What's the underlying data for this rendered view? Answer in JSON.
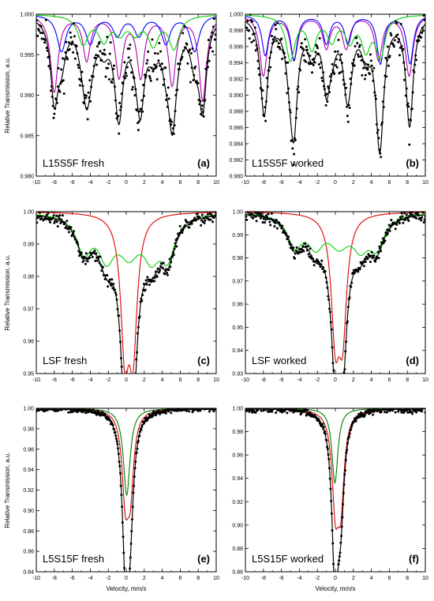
{
  "figure": {
    "xlabel": "Velocity, mm/s",
    "ylabel": "Relative Transmission, a.u."
  },
  "colors": {
    "data": "#000000",
    "fit": "#000000",
    "red": "#e00000",
    "green": "#00d000",
    "darkgreen": "#008000",
    "blue": "#0000ff",
    "magenta": "#b000b0"
  },
  "chart_data": [
    {
      "id": "a",
      "type": "scatter",
      "label": "L15S5F fresh",
      "letter": "(a)",
      "xlim": [
        -10,
        10
      ],
      "xticks": [
        -10,
        -8,
        -6,
        -4,
        -2,
        0,
        2,
        4,
        6,
        8,
        10
      ],
      "ylim": [
        0.98,
        1.0
      ],
      "yticks": [
        "1.000",
        "0.995",
        "0.990",
        "0.985",
        "0.980"
      ],
      "show_ylabel": true,
      "show_xlabel": false,
      "components": [
        {
          "name": "sextet-1",
          "color": "magenta",
          "baseline": 1.0,
          "lines": [
            [
              -8.0,
              0.0095,
              0.5
            ],
            [
              -4.4,
              0.0055,
              0.5
            ],
            [
              -0.8,
              0.0075,
              0.5
            ],
            [
              1.6,
              0.0075,
              0.5
            ],
            [
              5.1,
              0.0085,
              0.5
            ],
            [
              8.5,
              0.0105,
              0.5
            ]
          ]
        },
        {
          "name": "sextet-2",
          "color": "blue",
          "baseline": 1.0,
          "lines": [
            [
              -7.2,
              0.0045,
              0.6
            ],
            [
              -4.0,
              0.0035,
              0.6
            ],
            [
              -1.0,
              0.0025,
              0.6
            ],
            [
              1.4,
              0.0025,
              0.6
            ],
            [
              4.4,
              0.0035,
              0.6
            ],
            [
              7.6,
              0.0045,
              0.6
            ]
          ]
        },
        {
          "name": "sextet-3",
          "color": "green",
          "baseline": 1.0,
          "lines": [
            [
              -4.8,
              0.0035,
              0.7
            ],
            [
              -2.5,
              0.003,
              0.7
            ],
            [
              -0.7,
              0.002,
              0.7
            ],
            [
              1.0,
              0.002,
              0.7
            ],
            [
              3.0,
              0.0035,
              0.7
            ],
            [
              5.3,
              0.004,
              0.7
            ]
          ]
        }
      ],
      "noise": 0.0016,
      "noise_n": 260,
      "seed": 11
    },
    {
      "id": "b",
      "type": "scatter",
      "label": "L15S5F worked",
      "letter": "(b)",
      "xlim": [
        -10,
        10
      ],
      "xticks": [
        -10,
        -8,
        -6,
        -4,
        -2,
        0,
        2,
        4,
        6,
        8,
        10
      ],
      "ylim": [
        0.98,
        1.0
      ],
      "yticks": [
        "1.000",
        "0.998",
        "0.996",
        "0.994",
        "0.992",
        "0.990",
        "0.988",
        "0.986",
        "0.984",
        "0.982",
        "0.980"
      ],
      "show_ylabel": false,
      "show_xlabel": false,
      "components": [
        {
          "name": "sextet-1",
          "color": "magenta",
          "baseline": 1.0,
          "lines": [
            [
              -8.0,
              0.0075,
              0.5
            ],
            [
              -4.6,
              0.0055,
              0.5
            ],
            [
              -1.0,
              0.004,
              0.5
            ],
            [
              1.2,
              0.004,
              0.5
            ],
            [
              4.8,
              0.0055,
              0.5
            ],
            [
              8.2,
              0.0075,
              0.5
            ]
          ]
        },
        {
          "name": "sextet-2",
          "color": "blue",
          "baseline": 1.0,
          "lines": [
            [
              -7.8,
              0.005,
              0.45
            ],
            [
              -4.6,
              0.0055,
              0.45
            ],
            [
              -1.0,
              0.0035,
              0.45
            ],
            [
              1.4,
              0.0035,
              0.45
            ],
            [
              5.0,
              0.006,
              0.45
            ],
            [
              8.3,
              0.006,
              0.45
            ]
          ]
        },
        {
          "name": "sextet-3",
          "color": "green",
          "baseline": 1.0,
          "lines": [
            [
              -5.0,
              0.0055,
              0.6
            ],
            [
              -2.6,
              0.004,
              0.6
            ],
            [
              -0.4,
              0.003,
              0.6
            ],
            [
              1.6,
              0.003,
              0.6
            ],
            [
              3.4,
              0.004,
              0.6
            ],
            [
              5.0,
              0.005,
              0.6
            ]
          ]
        }
      ],
      "noise": 0.0013,
      "noise_n": 260,
      "seed": 23
    },
    {
      "id": "c",
      "type": "scatter",
      "label": "LSF fresh",
      "letter": "(c)",
      "xlim": [
        -10,
        10
      ],
      "xticks": [
        -10,
        -8,
        -6,
        -4,
        -2,
        0,
        2,
        4,
        6,
        8,
        10
      ],
      "ylim": [
        0.95,
        1.0
      ],
      "yticks": [
        "1.00",
        "0.99",
        "0.98",
        "0.97",
        "0.96",
        "0.95"
      ],
      "show_ylabel": true,
      "show_xlabel": false,
      "components": [
        {
          "name": "doublet",
          "color": "red",
          "baseline": 1.0,
          "lines": [
            [
              -0.15,
              0.04,
              0.55
            ],
            [
              0.75,
              0.039,
              0.55
            ]
          ]
        },
        {
          "name": "sextet",
          "color": "green",
          "baseline": 1.0,
          "lines": [
            [
              -4.7,
              0.011,
              1.0
            ],
            [
              -2.2,
              0.012,
              1.1
            ],
            [
              0.3,
              0.011,
              1.4
            ],
            [
              2.8,
              0.011,
              1.1
            ],
            [
              4.6,
              0.012,
              1.0
            ]
          ]
        }
      ],
      "noise": 0.0012,
      "noise_n": 260,
      "seed": 37
    },
    {
      "id": "d",
      "type": "scatter",
      "label": "LSF worked",
      "letter": "(d)",
      "xlim": [
        -10,
        10
      ],
      "xticks": [
        -10,
        -8,
        -6,
        -4,
        -2,
        0,
        2,
        4,
        6,
        8,
        10
      ],
      "ylim": [
        0.93,
        1.0
      ],
      "yticks": [
        "1.00",
        "0.99",
        "0.98",
        "0.97",
        "0.96",
        "0.95",
        "0.94",
        "0.93"
      ],
      "show_ylabel": false,
      "show_xlabel": false,
      "components": [
        {
          "name": "doublet",
          "color": "red",
          "baseline": 1.0,
          "lines": [
            [
              0.0,
              0.049,
              0.55
            ],
            [
              0.8,
              0.047,
              0.55
            ]
          ]
        },
        {
          "name": "sextet",
          "color": "green",
          "baseline": 1.0,
          "lines": [
            [
              -4.5,
              0.013,
              1.0
            ],
            [
              -2.2,
              0.012,
              1.1
            ],
            [
              0.4,
              0.012,
              1.4
            ],
            [
              2.8,
              0.012,
              1.1
            ],
            [
              4.6,
              0.013,
              1.0
            ]
          ]
        }
      ],
      "noise": 0.0015,
      "noise_n": 260,
      "seed": 41
    },
    {
      "id": "e",
      "type": "scatter",
      "label": "L5S15F fresh",
      "letter": "(e)",
      "xlim": [
        -10,
        10
      ],
      "xticks": [
        -10,
        -8,
        -6,
        -4,
        -2,
        0,
        2,
        4,
        6,
        8,
        10
      ],
      "ylim": [
        0.84,
        1.0
      ],
      "yticks": [
        "1.00",
        "0.98",
        "0.96",
        "0.94",
        "0.92",
        "0.90",
        "0.88",
        "0.86",
        "0.84"
      ],
      "show_ylabel": true,
      "show_xlabel": true,
      "components": [
        {
          "name": "doublet",
          "color": "red",
          "baseline": 1.0,
          "lines": [
            [
              -0.1,
              0.078,
              0.45
            ],
            [
              0.45,
              0.07,
              0.45
            ]
          ]
        },
        {
          "name": "singlet",
          "color": "darkgreen",
          "baseline": 1.0,
          "lines": [
            [
              0.05,
              0.085,
              0.45
            ]
          ]
        }
      ],
      "noise": 0.0015,
      "noise_n": 320,
      "seed": 53
    },
    {
      "id": "f",
      "type": "scatter",
      "label": "L5S15F worked",
      "letter": "(f)",
      "xlim": [
        -10,
        10
      ],
      "xticks": [
        -10,
        -8,
        -6,
        -4,
        -2,
        0,
        2,
        4,
        6,
        8,
        10
      ],
      "ylim": [
        0.86,
        1.0
      ],
      "yticks": [
        "1.00",
        "0.98",
        "0.96",
        "0.94",
        "0.92",
        "0.90",
        "0.88",
        "0.86"
      ],
      "show_ylabel": false,
      "show_xlabel": true,
      "components": [
        {
          "name": "doublet",
          "color": "red",
          "baseline": 1.0,
          "lines": [
            [
              0.0,
              0.075,
              0.45
            ],
            [
              0.6,
              0.072,
              0.45
            ]
          ]
        },
        {
          "name": "singlet",
          "color": "darkgreen",
          "baseline": 1.0,
          "lines": [
            [
              -0.05,
              0.064,
              0.4
            ]
          ]
        }
      ],
      "noise": 0.0018,
      "noise_n": 320,
      "seed": 67
    }
  ]
}
